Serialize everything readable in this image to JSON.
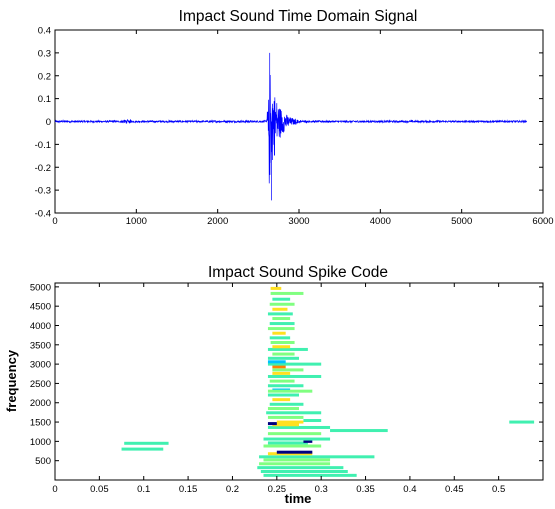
{
  "chart_data": [
    {
      "type": "line",
      "title": "Impact Sound Time Domain Signal",
      "xlabel": "",
      "ylabel": "",
      "xlim": [
        0,
        6000
      ],
      "ylim": [
        -0.4,
        0.4
      ],
      "xticks": [
        0,
        1000,
        2000,
        3000,
        4000,
        5000,
        6000
      ],
      "yticks": [
        -0.4,
        -0.3,
        -0.2,
        -0.1,
        0,
        0.1,
        0.2,
        0.3,
        0.4
      ],
      "xtick_labels": [
        "0",
        "1000",
        "2000",
        "3000",
        "4000",
        "5000",
        "6000"
      ],
      "ytick_labels": [
        "-0.4",
        "-0.3",
        "-0.2",
        "-0.1",
        "0",
        "0.1",
        "0.2",
        "0.3",
        "0.4"
      ],
      "color": "#0000ff",
      "signal": {
        "x_start": 0,
        "x_end": 5800,
        "noise_amplitude": 0.004,
        "burst_x": 880,
        "burst_amplitude": 0.007,
        "onset_x": 2620,
        "peak_positive": 0.3,
        "peak_negative": -0.345,
        "decay_end_x": 3150
      },
      "grid": false
    },
    {
      "type": "heatmap",
      "title": "Impact Sound Spike Code",
      "xlabel": "time",
      "ylabel": "frequency",
      "xlim": [
        0,
        0.55
      ],
      "ylim": [
        0,
        5100
      ],
      "xticks": [
        0,
        0.05,
        0.1,
        0.15,
        0.2,
        0.25,
        0.3,
        0.35,
        0.4,
        0.45,
        0.5
      ],
      "yticks": [
        500,
        1000,
        1500,
        2000,
        2500,
        3000,
        3500,
        4000,
        4500,
        5000
      ],
      "xtick_labels": [
        "0",
        "0.05",
        "0.1",
        "0.15",
        "0.2",
        "0.25",
        "0.3",
        "0.35",
        "0.4",
        "0.45",
        "0.5"
      ],
      "ytick_labels": [
        "500",
        "1000",
        "1500",
        "2000",
        "2500",
        "3000",
        "3500",
        "4000",
        "4500",
        "5000"
      ],
      "colors": {
        "low": "#40f0b0",
        "mid": "#80ff80",
        "high": "#ffe020",
        "peak": "#ff8000",
        "dark": "#000080",
        "cyan": "#00c0ff"
      },
      "spikes": [
        {
          "t0": 0.078,
          "t1": 0.128,
          "f": 950,
          "c": "low"
        },
        {
          "t0": 0.075,
          "t1": 0.122,
          "f": 800,
          "c": "low"
        },
        {
          "t0": 0.512,
          "t1": 0.54,
          "f": 1500,
          "c": "low"
        },
        {
          "t0": 0.31,
          "t1": 0.375,
          "f": 1280,
          "c": "low"
        },
        {
          "t0": 0.235,
          "t1": 0.34,
          "f": 120,
          "c": "low"
        },
        {
          "t0": 0.232,
          "t1": 0.33,
          "f": 220,
          "c": "low"
        },
        {
          "t0": 0.228,
          "t1": 0.325,
          "f": 320,
          "c": "low"
        },
        {
          "t0": 0.23,
          "t1": 0.31,
          "f": 420,
          "c": "mid"
        },
        {
          "t0": 0.23,
          "t1": 0.36,
          "f": 600,
          "c": "low"
        },
        {
          "t0": 0.235,
          "t1": 0.31,
          "f": 520,
          "c": "mid"
        },
        {
          "t0": 0.24,
          "t1": 0.29,
          "f": 680,
          "c": "high"
        },
        {
          "t0": 0.25,
          "t1": 0.29,
          "f": 720,
          "c": "dark"
        },
        {
          "t0": 0.235,
          "t1": 0.3,
          "f": 880,
          "c": "mid"
        },
        {
          "t0": 0.24,
          "t1": 0.285,
          "f": 960,
          "c": "low"
        },
        {
          "t0": 0.28,
          "t1": 0.29,
          "f": 1000,
          "c": "dark"
        },
        {
          "t0": 0.235,
          "t1": 0.31,
          "f": 1060,
          "c": "low"
        },
        {
          "t0": 0.24,
          "t1": 0.3,
          "f": 1200,
          "c": "mid"
        },
        {
          "t0": 0.24,
          "t1": 0.31,
          "f": 1360,
          "c": "low"
        },
        {
          "t0": 0.245,
          "t1": 0.275,
          "f": 1430,
          "c": "high"
        },
        {
          "t0": 0.25,
          "t1": 0.28,
          "f": 1500,
          "c": "high"
        },
        {
          "t0": 0.24,
          "t1": 0.25,
          "f": 1460,
          "c": "dark"
        },
        {
          "t0": 0.28,
          "t1": 0.3,
          "f": 1540,
          "c": "low"
        },
        {
          "t0": 0.24,
          "t1": 0.28,
          "f": 1620,
          "c": "mid"
        },
        {
          "t0": 0.238,
          "t1": 0.3,
          "f": 1740,
          "c": "low"
        },
        {
          "t0": 0.24,
          "t1": 0.275,
          "f": 1850,
          "c": "mid"
        },
        {
          "t0": 0.242,
          "t1": 0.28,
          "f": 1960,
          "c": "low"
        },
        {
          "t0": 0.245,
          "t1": 0.265,
          "f": 2080,
          "c": "high"
        },
        {
          "t0": 0.24,
          "t1": 0.275,
          "f": 2200,
          "c": "low"
        },
        {
          "t0": 0.245,
          "t1": 0.265,
          "f": 2330,
          "c": "cyan"
        },
        {
          "t0": 0.24,
          "t1": 0.29,
          "f": 2300,
          "c": "mid"
        },
        {
          "t0": 0.24,
          "t1": 0.28,
          "f": 2440,
          "c": "low"
        },
        {
          "t0": 0.242,
          "t1": 0.27,
          "f": 2560,
          "c": "mid"
        },
        {
          "t0": 0.24,
          "t1": 0.3,
          "f": 2680,
          "c": "low"
        },
        {
          "t0": 0.245,
          "t1": 0.265,
          "f": 2760,
          "c": "high"
        },
        {
          "t0": 0.245,
          "t1": 0.28,
          "f": 2850,
          "c": "mid"
        },
        {
          "t0": 0.245,
          "t1": 0.26,
          "f": 2930,
          "c": "peak"
        },
        {
          "t0": 0.24,
          "t1": 0.3,
          "f": 3000,
          "c": "low"
        },
        {
          "t0": 0.24,
          "t1": 0.26,
          "f": 3060,
          "c": "cyan"
        },
        {
          "t0": 0.24,
          "t1": 0.275,
          "f": 3150,
          "c": "low"
        },
        {
          "t0": 0.245,
          "t1": 0.27,
          "f": 3260,
          "c": "mid"
        },
        {
          "t0": 0.24,
          "t1": 0.285,
          "f": 3380,
          "c": "low"
        },
        {
          "t0": 0.245,
          "t1": 0.265,
          "f": 3450,
          "c": "high"
        },
        {
          "t0": 0.243,
          "t1": 0.27,
          "f": 3560,
          "c": "mid"
        },
        {
          "t0": 0.242,
          "t1": 0.265,
          "f": 3680,
          "c": "low"
        },
        {
          "t0": 0.245,
          "t1": 0.26,
          "f": 3800,
          "c": "high"
        },
        {
          "t0": 0.24,
          "t1": 0.27,
          "f": 3920,
          "c": "mid"
        },
        {
          "t0": 0.242,
          "t1": 0.27,
          "f": 4050,
          "c": "low"
        },
        {
          "t0": 0.245,
          "t1": 0.265,
          "f": 4180,
          "c": "mid"
        },
        {
          "t0": 0.24,
          "t1": 0.268,
          "f": 4300,
          "c": "low"
        },
        {
          "t0": 0.245,
          "t1": 0.262,
          "f": 4420,
          "c": "high"
        },
        {
          "t0": 0.242,
          "t1": 0.27,
          "f": 4550,
          "c": "mid"
        },
        {
          "t0": 0.245,
          "t1": 0.265,
          "f": 4680,
          "c": "low"
        },
        {
          "t0": 0.243,
          "t1": 0.28,
          "f": 4830,
          "c": "mid"
        },
        {
          "t0": 0.243,
          "t1": 0.255,
          "f": 4960,
          "c": "high"
        }
      ],
      "grid": false
    }
  ]
}
